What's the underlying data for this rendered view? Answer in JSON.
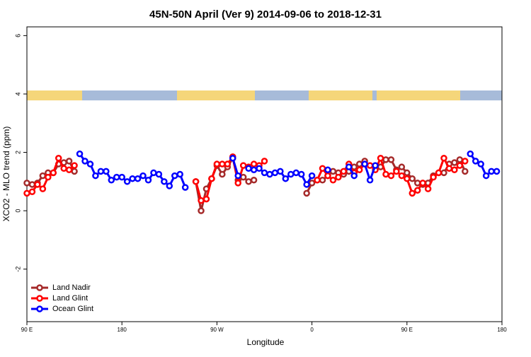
{
  "chart_data": {
    "type": "line",
    "title": "45N-50N April (Ver 9)   2014-09-06 to 2018-12-31",
    "x_label": "Longitude",
    "y_label": "XCO2 - MLO trend (ppm)",
    "x": [
      90,
      95,
      100,
      105,
      110,
      115,
      120,
      125,
      130,
      135,
      140,
      145,
      150,
      155,
      160,
      165,
      170,
      175,
      180,
      185,
      190,
      195,
      200,
      205,
      210,
      215,
      220,
      225,
      230,
      235,
      240,
      245,
      250,
      255,
      260,
      265,
      270,
      275,
      280,
      285,
      290,
      295,
      300,
      305,
      310,
      315,
      320,
      325,
      330,
      335,
      340,
      345,
      350,
      355,
      360,
      365,
      370,
      375,
      380,
      385,
      390,
      395,
      400,
      405,
      410,
      415,
      420,
      425,
      430,
      435,
      440,
      445,
      450,
      455,
      460,
      465,
      470,
      475,
      480,
      485,
      490,
      495,
      500,
      505,
      510,
      515,
      520,
      525,
      530,
      535
    ],
    "xlim": [
      90,
      540
    ],
    "xticks": [
      {
        "value": 90,
        "label": "90 E"
      },
      180,
      {
        "value": 270,
        "label": "90 W"
      },
      {
        "value": 360,
        "label": "0"
      },
      {
        "value": 450,
        "label": "90 E"
      },
      {
        "value": 540,
        "label": "180"
      }
    ],
    "ylim": [
      -3.8,
      6.3
    ],
    "yticks": [
      -2,
      0,
      2,
      4,
      6
    ],
    "legend": "bottom-left",
    "series": [
      {
        "name": "Land Nadir",
        "color": "#a52a2a",
        "values": [
          0.95,
          0.9,
          0.95,
          1.2,
          1.3,
          1.3,
          1.6,
          1.65,
          1.7,
          1.35,
          null,
          null,
          null,
          null,
          null,
          null,
          null,
          null,
          null,
          null,
          null,
          null,
          null,
          null,
          null,
          null,
          null,
          null,
          null,
          null,
          null,
          null,
          1.0,
          0.0,
          0.75,
          1.1,
          1.55,
          1.25,
          1.5,
          1.8,
          1.05,
          1.15,
          1.0,
          1.05,
          null,
          null,
          null,
          null,
          null,
          null,
          null,
          null,
          null,
          0.6,
          0.95,
          1.05,
          1.05,
          1.2,
          1.35,
          1.3,
          1.25,
          1.35,
          1.5,
          1.6,
          1.7,
          null,
          null,
          1.5,
          1.75,
          1.75,
          1.4,
          1.5,
          1.3,
          1.1,
          0.95,
          0.9,
          0.95,
          1.2,
          1.3,
          1.3,
          1.6,
          1.65,
          1.75,
          1.35,
          null,
          null,
          null,
          null,
          null,
          null
        ]
      },
      {
        "name": "Land Glint",
        "color": "#ff0000",
        "values": [
          0.6,
          0.65,
          0.9,
          0.75,
          1.15,
          1.3,
          1.8,
          1.45,
          1.4,
          1.55,
          null,
          null,
          null,
          null,
          null,
          null,
          null,
          null,
          null,
          null,
          null,
          null,
          null,
          null,
          null,
          null,
          null,
          null,
          null,
          null,
          null,
          null,
          1.0,
          0.35,
          0.4,
          1.1,
          1.6,
          1.6,
          1.6,
          1.85,
          0.95,
          1.55,
          1.5,
          1.6,
          1.55,
          1.7,
          null,
          null,
          null,
          null,
          null,
          null,
          null,
          null,
          null,
          1.05,
          1.45,
          1.2,
          1.05,
          1.15,
          1.35,
          1.6,
          1.3,
          1.4,
          1.6,
          1.55,
          1.4,
          1.8,
          1.25,
          1.2,
          1.35,
          1.2,
          1.1,
          0.6,
          0.7,
          0.95,
          0.75,
          1.15,
          1.3,
          1.8,
          1.45,
          1.4,
          1.55,
          1.7,
          null,
          null,
          null,
          null,
          null,
          null
        ]
      },
      {
        "name": "Ocean Glint",
        "color": "#0000ff",
        "values": [
          null,
          null,
          null,
          null,
          null,
          null,
          null,
          null,
          null,
          null,
          1.95,
          1.7,
          1.6,
          1.2,
          1.35,
          1.35,
          1.05,
          1.15,
          1.15,
          1.0,
          1.1,
          1.1,
          1.2,
          1.05,
          1.3,
          1.25,
          1.0,
          0.85,
          1.2,
          1.25,
          0.8,
          null,
          null,
          null,
          null,
          null,
          null,
          null,
          null,
          1.8,
          1.2,
          null,
          1.45,
          1.4,
          1.45,
          1.3,
          1.25,
          1.3,
          1.35,
          1.1,
          1.25,
          1.3,
          1.25,
          0.9,
          1.2,
          null,
          null,
          1.4,
          null,
          null,
          null,
          1.5,
          1.2,
          null,
          1.6,
          1.05,
          1.55,
          null,
          null,
          null,
          null,
          null,
          null,
          null,
          null,
          null,
          null,
          null,
          null,
          null,
          null,
          null,
          null,
          null,
          1.95,
          1.7,
          1.6,
          1.2,
          1.35,
          1.35
        ]
      }
    ]
  }
}
